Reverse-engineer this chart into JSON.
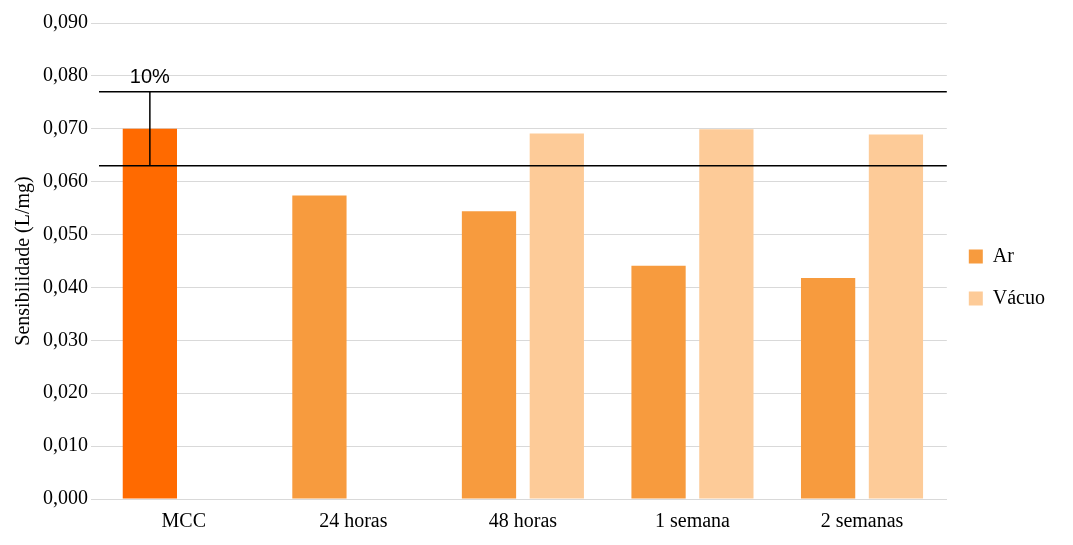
{
  "chart_data": {
    "type": "bar",
    "ylabel": "Sensibilidade (L/mg)",
    "categories": [
      "MCC",
      "24 horas",
      "48 horas",
      "1 semana",
      "2 semanas"
    ],
    "series": [
      {
        "name": "Ar",
        "color": "#f79b3e",
        "colors": [
          "#ff6a00",
          "#f79b3e",
          "#f79b3e",
          "#f79b3e",
          "#f79b3e"
        ],
        "values": [
          0.07,
          0.0574,
          0.0544,
          0.0441,
          0.0418
        ],
        "errors": [
          0.007,
          null,
          null,
          null,
          null
        ]
      },
      {
        "name": "Vácuo",
        "color": "#fdcb98",
        "values": [
          null,
          null,
          0.0691,
          0.0699,
          0.0689
        ]
      }
    ],
    "ylim": [
      0,
      0.09
    ],
    "yticks": [
      {
        "value": 0,
        "label": "0,000"
      },
      {
        "value": 0.01,
        "label": "0,010"
      },
      {
        "value": 0.02,
        "label": "0,020"
      },
      {
        "value": 0.03,
        "label": "0,030"
      },
      {
        "value": 0.04,
        "label": "0,040"
      },
      {
        "value": 0.05,
        "label": "0,050"
      },
      {
        "value": 0.06,
        "label": "0,060"
      },
      {
        "value": 0.07,
        "label": "0,070"
      },
      {
        "value": 0.08,
        "label": "0,080"
      },
      {
        "value": 0.09,
        "label": "0,090"
      }
    ],
    "grid": "y",
    "legend": "right",
    "ref_lines": [
      {
        "axis": "y",
        "value": 0.077,
        "color": "#000000"
      },
      {
        "axis": "y",
        "value": 0.063,
        "color": "#000000"
      }
    ],
    "annotations": [
      {
        "text": "10%",
        "x": "MCC",
        "y": 0.077
      }
    ]
  }
}
